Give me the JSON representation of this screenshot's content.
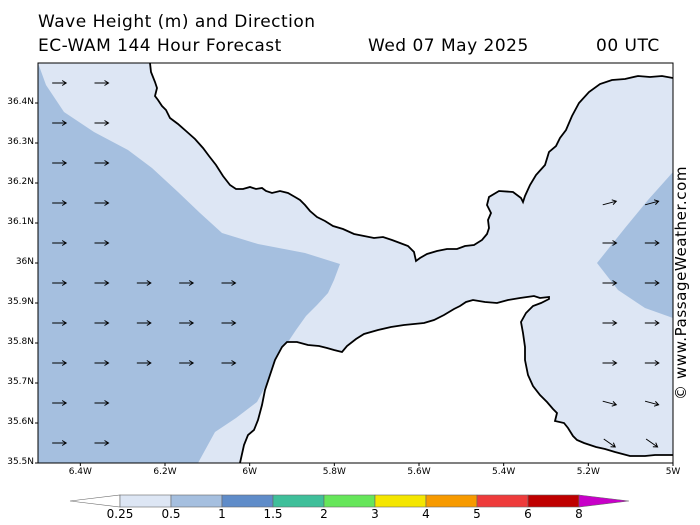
{
  "header": {
    "line1": "Wave Height (m) and Direction",
    "line2_left": "EC-WAM 144 Hour Forecast",
    "line2_date": "Wed 07 May 2025",
    "line2_time": "00 UTC"
  },
  "watermark": "© www.PassageWeather.com",
  "axes": {
    "y_ticks": [
      "36.4N",
      "36.3N",
      "36.2N",
      "36.1N",
      "36N",
      "35.9N",
      "35.8N",
      "35.7N",
      "35.6N",
      "35.5N"
    ],
    "x_ticks": [
      "6.4W",
      "6.2W",
      "6W",
      "5.8W",
      "5.6W",
      "5.4W",
      "5.2W",
      "5W"
    ]
  },
  "colors": {
    "land": "#ffffff",
    "wave_lt_0_5": "#dde6f4",
    "wave_0_5_1": "#a5bfdf",
    "coast": "#000000"
  },
  "legend": {
    "labels": [
      "0.25",
      "0.5",
      "1",
      "1.5",
      "2",
      "3",
      "4",
      "5",
      "6",
      "8"
    ],
    "colors": [
      "#dde6f4",
      "#a5bfdf",
      "#5f8cc9",
      "#3fbf9a",
      "#66e65a",
      "#f4e600",
      "#f79a00",
      "#ee3b3b",
      "#bf0000",
      "#c800c8"
    ]
  },
  "arrows": [
    {
      "lon": -6.45,
      "lat": 36.45,
      "dir": "E"
    },
    {
      "lon": -6.35,
      "lat": 36.45,
      "dir": "E"
    },
    {
      "lon": -6.45,
      "lat": 36.35,
      "dir": "E"
    },
    {
      "lon": -6.35,
      "lat": 36.35,
      "dir": "E"
    },
    {
      "lon": -6.45,
      "lat": 36.25,
      "dir": "E"
    },
    {
      "lon": -6.35,
      "lat": 36.25,
      "dir": "E"
    },
    {
      "lon": -6.45,
      "lat": 36.15,
      "dir": "E"
    },
    {
      "lon": -6.35,
      "lat": 36.15,
      "dir": "E"
    },
    {
      "lon": -6.45,
      "lat": 36.05,
      "dir": "E"
    },
    {
      "lon": -6.35,
      "lat": 36.05,
      "dir": "E"
    },
    {
      "lon": -6.45,
      "lat": 35.95,
      "dir": "E"
    },
    {
      "lon": -6.35,
      "lat": 35.95,
      "dir": "E"
    },
    {
      "lon": -6.25,
      "lat": 35.95,
      "dir": "E"
    },
    {
      "lon": -6.15,
      "lat": 35.95,
      "dir": "E"
    },
    {
      "lon": -6.05,
      "lat": 35.95,
      "dir": "E"
    },
    {
      "lon": -6.45,
      "lat": 35.85,
      "dir": "E"
    },
    {
      "lon": -6.35,
      "lat": 35.85,
      "dir": "E"
    },
    {
      "lon": -6.25,
      "lat": 35.85,
      "dir": "E"
    },
    {
      "lon": -6.15,
      "lat": 35.85,
      "dir": "E"
    },
    {
      "lon": -6.05,
      "lat": 35.85,
      "dir": "E"
    },
    {
      "lon": -6.45,
      "lat": 35.75,
      "dir": "E"
    },
    {
      "lon": -6.35,
      "lat": 35.75,
      "dir": "E"
    },
    {
      "lon": -6.25,
      "lat": 35.75,
      "dir": "E"
    },
    {
      "lon": -6.15,
      "lat": 35.75,
      "dir": "E"
    },
    {
      "lon": -6.05,
      "lat": 35.75,
      "dir": "E"
    },
    {
      "lon": -6.45,
      "lat": 35.65,
      "dir": "E"
    },
    {
      "lon": -6.35,
      "lat": 35.65,
      "dir": "E"
    },
    {
      "lon": -6.45,
      "lat": 35.55,
      "dir": "E"
    },
    {
      "lon": -6.35,
      "lat": 35.55,
      "dir": "E"
    },
    {
      "lon": -5.15,
      "lat": 36.15,
      "dir": "ENE"
    },
    {
      "lon": -5.05,
      "lat": 36.15,
      "dir": "ENE"
    },
    {
      "lon": -4.95,
      "lat": 36.15,
      "dir": "ENE"
    },
    {
      "lon": -5.15,
      "lat": 36.05,
      "dir": "E"
    },
    {
      "lon": -5.05,
      "lat": 36.05,
      "dir": "E"
    },
    {
      "lon": -4.95,
      "lat": 36.05,
      "dir": "E"
    },
    {
      "lon": -5.15,
      "lat": 35.95,
      "dir": "E"
    },
    {
      "lon": -5.05,
      "lat": 35.95,
      "dir": "E"
    },
    {
      "lon": -4.95,
      "lat": 35.95,
      "dir": "E"
    },
    {
      "lon": -5.15,
      "lat": 35.85,
      "dir": "E"
    },
    {
      "lon": -5.05,
      "lat": 35.85,
      "dir": "E"
    },
    {
      "lon": -4.95,
      "lat": 35.85,
      "dir": "E"
    },
    {
      "lon": -5.15,
      "lat": 35.75,
      "dir": "E"
    },
    {
      "lon": -5.05,
      "lat": 35.75,
      "dir": "E"
    },
    {
      "lon": -4.95,
      "lat": 35.75,
      "dir": "E"
    },
    {
      "lon": -5.15,
      "lat": 35.65,
      "dir": "ESE"
    },
    {
      "lon": -5.05,
      "lat": 35.65,
      "dir": "ESE"
    },
    {
      "lon": -4.95,
      "lat": 35.65,
      "dir": "ESE"
    },
    {
      "lon": -5.15,
      "lat": 35.55,
      "dir": "SE"
    },
    {
      "lon": -5.05,
      "lat": 35.55,
      "dir": "SE"
    },
    {
      "lon": -4.95,
      "lat": 35.55,
      "dir": "SE"
    }
  ]
}
